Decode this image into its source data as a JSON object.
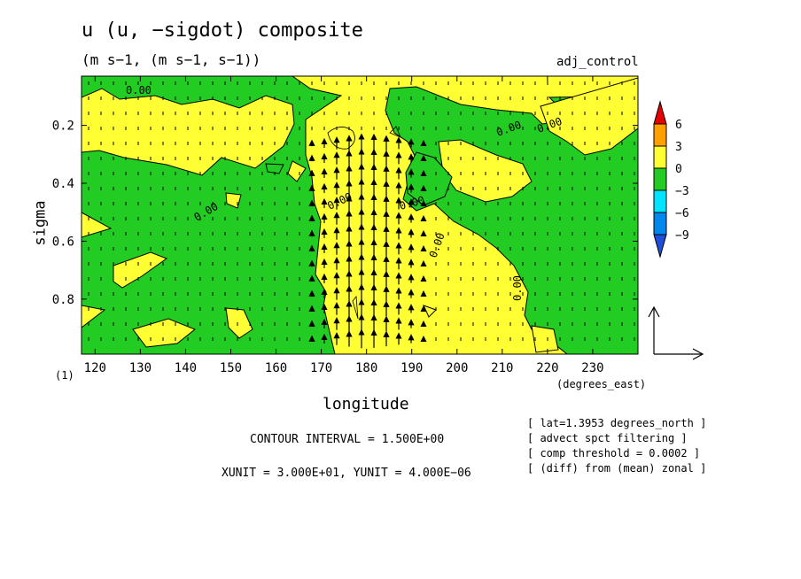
{
  "figure": {
    "title": "u (u, −sigdot) composite",
    "units_line": "(m s−1, (m s−1, s−1))",
    "run_label": "adj_control",
    "y_axis_label": "sigma",
    "x_axis_label": "longitude",
    "x_unit_label": "(degrees_east)",
    "frame_index": "(1)",
    "contour_interval": "CONTOUR INTERVAL = 1.500E+00",
    "vector_units": "XUNIT = 3.000E+01, YUNIT = 4.000E−06",
    "notes": [
      "[ lat=1.3953 degrees_north ]",
      "[ advect spct filtering ]",
      "[ comp threshold = 0.0002 ]",
      "[ (diff) from (mean) zonal ]"
    ]
  },
  "chart_data": {
    "type": "heatmap",
    "title": "u (u, −sigdot) composite",
    "xlabel": "longitude",
    "ylabel": "sigma",
    "xlim": [
      117,
      240
    ],
    "ylim": [
      0.03,
      0.99
    ],
    "y_inverted": true,
    "x_ticks": [
      120,
      130,
      140,
      150,
      160,
      170,
      180,
      190,
      200,
      210,
      220,
      230
    ],
    "y_ticks": [
      0.2,
      0.4,
      0.6,
      0.8
    ],
    "colorbar": {
      "levels": [
        "6",
        "3",
        "0",
        "−3",
        "−6",
        "−9"
      ],
      "colors": [
        "#e60000",
        "#ffa000",
        "#ffff33",
        "#22cc22",
        "#00e5ff",
        "#0088ee",
        "#1f4fd8"
      ]
    },
    "contour_labels": [
      "0.00",
      "0.00",
      "0.00",
      "0.00",
      "0.00",
      "0.00",
      "0.00",
      "0.00"
    ],
    "contour_interval": 1.5,
    "vector_scale": {
      "xunit": 30,
      "yunit": 4e-06
    },
    "palette": {
      "positive": "#ffff33",
      "negative": "#22cc22",
      "line": "#000000"
    }
  }
}
